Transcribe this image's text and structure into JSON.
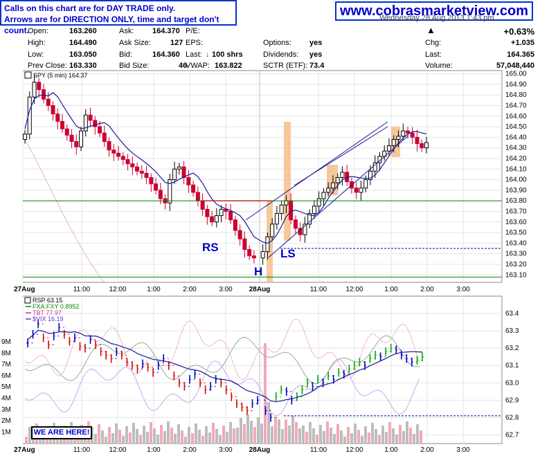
{
  "header": {
    "notice_line1": "Calls on this chart are for DAY TRADE only.",
    "notice_line2": "Arrows are for DIRECTION ONLY, time and target don't count.",
    "site": "www.cobrasmarketview.com",
    "date_partial": "Wednesday 28 Aug 2013 1:43 pm",
    "quote": {
      "open_label": "Open:",
      "open": "163.260",
      "high_label": "High:",
      "high": "164.490",
      "low_label": "Low:",
      "low": "163.050",
      "prev_label": "Prev Close:",
      "prev": "163.330",
      "ask_label": "Ask:",
      "ask": "164.370",
      "asksize_label": "Ask Size:",
      "asksize": "127",
      "bid_label": "Bid:",
      "bid": "164.360",
      "bidsize_label": "Bid Size:",
      "bidsize": "46",
      "pe_label": "P/E:",
      "eps_label": "EPS:",
      "last_label": "Last:",
      "last_size": "100 shrs",
      "vwap_label": "VWAP:",
      "vwap": "163.822",
      "options_label": "Options:",
      "options": "yes",
      "dividends_label": "Dividends:",
      "dividends": "yes",
      "sctr_label": "SCTR (ETF):",
      "sctr": "73.4",
      "pct": "+0.63%",
      "chg_label": "Chg:",
      "chg": "+1.035",
      "last2_label": "Last:",
      "last2": "164.365",
      "volume_label": "Volume:",
      "volume": "57,048,440"
    }
  },
  "colors": {
    "up": "#000000",
    "down": "#cc0033",
    "ma": "#1a1a99",
    "h_line_red": "#cc0000",
    "h_line_green": "#008800",
    "highlight": "#f5c08a",
    "rsp_up": "#00aa00",
    "rsp_down": "#dd0000",
    "rsp_neutral": "#0000cc"
  },
  "chart_data": [
    {
      "type": "candlestick",
      "title": "SPY (5 min) 164.37",
      "ylim": [
        163.03,
        165.03
      ],
      "y_ticks": [
        "165.00",
        "164.90",
        "164.80",
        "164.70",
        "164.60",
        "164.50",
        "164.40",
        "164.30",
        "164.20",
        "164.10",
        "164.00",
        "163.90",
        "163.80",
        "163.70",
        "163.60",
        "163.50",
        "163.40",
        "163.30",
        "163.20",
        "163.10"
      ],
      "x_ticks": [
        "27Aug",
        "11:00",
        "12:00",
        "1:00",
        "2:00",
        "3:00",
        "28Aug",
        "11:00",
        "12:00",
        "1:00",
        "2:00",
        "3:00"
      ],
      "close_series": [
        164.43,
        164.78,
        164.92,
        164.85,
        164.76,
        164.7,
        164.62,
        164.55,
        164.48,
        164.42,
        164.36,
        164.31,
        164.46,
        164.61,
        164.56,
        164.5,
        164.44,
        164.36,
        164.28,
        164.25,
        164.22,
        164.19,
        164.15,
        164.12,
        164.08,
        164.06,
        164.02,
        163.96,
        163.9,
        163.82,
        163.78,
        164.0,
        164.1,
        164.12,
        164.02,
        163.95,
        163.88,
        163.8,
        163.72,
        163.65,
        163.6,
        163.66,
        163.72,
        163.7,
        163.62,
        163.52,
        163.44,
        163.34,
        163.28,
        163.26,
        163.32,
        163.46,
        163.58,
        163.68,
        163.76,
        163.8,
        163.62,
        163.54,
        163.48,
        163.58,
        163.68,
        163.75,
        163.82,
        163.88,
        163.92,
        163.97,
        164.02,
        164.07,
        163.98,
        163.92,
        163.88,
        163.92,
        164.0,
        164.08,
        164.16,
        164.22,
        164.27,
        164.32,
        164.38,
        164.41,
        164.46,
        164.44,
        164.4,
        164.34,
        164.3,
        164.35
      ],
      "annotations": {
        "rs": "RS",
        "h": "H",
        "ls": "LS"
      },
      "horizontal_levels": [
        163.8,
        163.08
      ],
      "dashed_level": 163.35
    },
    {
      "type": "line",
      "title": "RSP 63.15",
      "series": [
        {
          "name": "FXA:FXY 0.8952"
        },
        {
          "name": "TBT 77.97"
        },
        {
          "name": "$VIX 16.19"
        }
      ],
      "ylim": [
        62.65,
        63.5
      ],
      "y_ticks": [
        "63.4",
        "63.3",
        "63.2",
        "63.1",
        "63.0",
        "62.9",
        "62.8",
        "62.7"
      ],
      "volume_ticks": [
        "9M",
        "8M",
        "7M",
        "6M",
        "5M",
        "4M",
        "3M",
        "2M",
        "1M"
      ],
      "rsp_close": [
        63.23,
        63.28,
        63.34,
        63.26,
        63.22,
        63.27,
        63.32,
        63.28,
        63.24,
        63.26,
        63.21,
        63.2,
        63.25,
        63.22,
        63.18,
        63.16,
        63.14,
        63.18,
        63.16,
        63.12,
        63.1,
        63.08,
        63.11,
        63.09,
        63.06,
        63.1,
        63.14,
        63.1,
        63.04,
        63.0,
        62.98,
        63.02,
        63.05,
        63.0,
        62.96,
        62.98,
        63.02,
        63.0,
        62.96,
        62.92,
        62.88,
        62.86,
        62.84,
        62.88,
        62.9,
        62.84,
        62.8,
        62.92,
        62.96,
        62.95,
        62.9,
        62.92,
        62.96,
        63.0,
        62.98,
        63.02,
        63.0,
        63.04,
        63.02,
        63.06,
        63.05,
        63.08,
        63.1,
        63.12,
        63.1,
        63.14,
        63.16,
        63.15,
        63.18,
        63.2,
        63.19,
        63.16,
        63.14,
        63.12,
        63.13,
        63.15
      ]
    }
  ],
  "labels": {
    "we_are_here": "WE ARE HERE!"
  }
}
